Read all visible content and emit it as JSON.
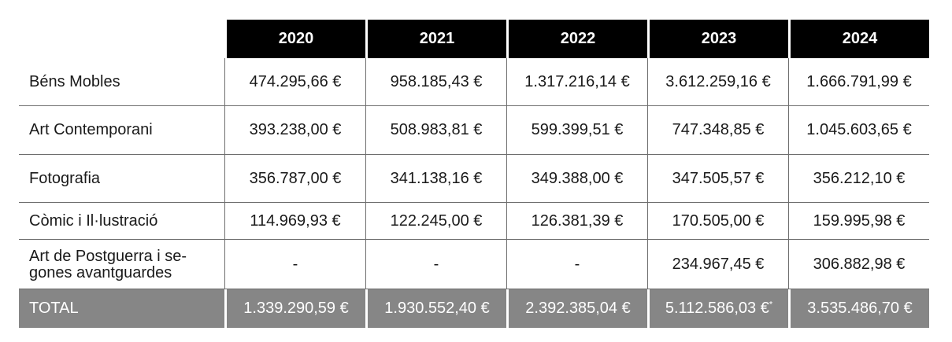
{
  "years": [
    "2020",
    "2021",
    "2022",
    "2023",
    "2024"
  ],
  "rows": [
    {
      "label": "Béns Mobles",
      "values": [
        "474.295,66 €",
        "958.185,43 €",
        "1.317.216,14 €",
        "3.612.259,16 €",
        "1.666.791,99 €"
      ]
    },
    {
      "label": "Art Contemporani",
      "values": [
        "393.238,00 €",
        "508.983,81 €",
        "599.399,51 €",
        "747.348,85 €",
        "1.045.603,65 €"
      ]
    },
    {
      "label": "Fotografia",
      "values": [
        "356.787,00 €",
        "341.138,16 €",
        "349.388,00 €",
        "347.505,57 €",
        "356.212,10 €"
      ]
    },
    {
      "label": "Còmic i Il·lustració",
      "values": [
        "114.969,93 €",
        "122.245,00 €",
        "126.381,39 €",
        "170.505,00 €",
        "159.995,98 €"
      ]
    },
    {
      "label_line1": "Art de Postguerra i se-",
      "label_line2": "gones avantguardes",
      "values": [
        "-",
        "-",
        "-",
        "234.967,45 €",
        "306.882,98 €"
      ]
    }
  ],
  "total": {
    "label": "TOTAL",
    "values": [
      "1.339.290,59 €",
      "1.930.552,40 €",
      "2.392.385,04 €",
      "5.112.586,03 €",
      "3.535.486,70 €"
    ],
    "footnote_mark": "*"
  }
}
